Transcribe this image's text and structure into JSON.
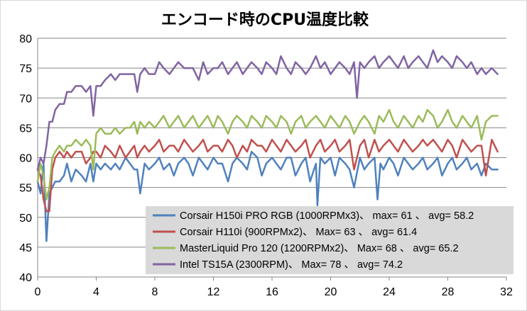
{
  "chart_data": {
    "type": "line",
    "title": "エンコード時のCPU温度比較",
    "xlabel": "",
    "ylabel": "",
    "xlim": [
      0,
      32
    ],
    "ylim": [
      40,
      80
    ],
    "x_ticks": [
      0,
      4,
      8,
      12,
      16,
      20,
      24,
      28,
      32
    ],
    "x_tick_labels": [
      "0",
      "4",
      "8",
      "12",
      "16",
      "20",
      "24",
      "28",
      "32"
    ],
    "y_ticks": [
      40,
      45,
      50,
      55,
      60,
      65,
      70,
      75,
      80
    ],
    "y_tick_labels": [
      "40",
      "45",
      "50",
      "55",
      "60",
      "65",
      "70",
      "75",
      "80"
    ],
    "grid": "horizontal",
    "legend_position": "bottom-right",
    "series": [
      {
        "name": "Corsair H150i PRO RGB (1000RPMx3)、 max= 61 、 avg= 58.2",
        "color": "#4f81bd",
        "x": [
          0,
          0.2,
          0.4,
          0.6,
          0.8,
          1.0,
          1.2,
          1.5,
          1.8,
          2.0,
          2.3,
          2.6,
          3.0,
          3.3,
          3.6,
          3.8,
          4.0,
          4.3,
          4.6,
          5.0,
          5.3,
          5.6,
          6.0,
          6.3,
          6.6,
          6.8,
          7.0,
          7.3,
          7.6,
          8.0,
          8.3,
          8.6,
          9.0,
          9.3,
          9.6,
          10.0,
          10.3,
          10.6,
          11.0,
          11.3,
          11.6,
          12.0,
          12.3,
          12.6,
          13.0,
          13.3,
          13.6,
          14.0,
          14.3,
          14.6,
          15.0,
          15.3,
          15.6,
          16.0,
          16.3,
          16.6,
          17.0,
          17.3,
          17.6,
          18.0,
          18.3,
          18.6,
          19.0,
          19.1,
          19.3,
          19.6,
          20.0,
          20.3,
          20.6,
          21.0,
          21.3,
          21.6,
          22.0,
          22.3,
          22.6,
          23.0,
          23.2,
          23.4,
          23.6,
          24.0,
          24.3,
          24.6,
          25.0,
          25.3,
          25.6,
          26.0,
          26.3,
          26.6,
          27.0,
          27.3,
          27.6,
          28.0,
          28.3,
          28.6,
          29.0,
          29.3,
          29.6,
          30.0,
          30.3,
          30.6,
          31.0,
          31.4
        ],
        "values": [
          56,
          54,
          59,
          46,
          54,
          55,
          56,
          56,
          57,
          59,
          56,
          58,
          57,
          56,
          59,
          56,
          59,
          58,
          59,
          58,
          59,
          58,
          60,
          59,
          58,
          58,
          54,
          59,
          58,
          59,
          60,
          58,
          59,
          57,
          59,
          60,
          59,
          57,
          60,
          59,
          58,
          60,
          59,
          59,
          56,
          59,
          60,
          59,
          58,
          61,
          60,
          57,
          59,
          60,
          59,
          58,
          60,
          60,
          57,
          59,
          60,
          56,
          59,
          52,
          60,
          59,
          60,
          57,
          60,
          59,
          58,
          55,
          60,
          58,
          59,
          60,
          53,
          59,
          58,
          60,
          59,
          57,
          60,
          59,
          58,
          59,
          60,
          58,
          59,
          60,
          57,
          59,
          60,
          58,
          59,
          60,
          58,
          59,
          57,
          59,
          58,
          58
        ]
      },
      {
        "name": "Corsair H110i (900RPMx2)、 Max= 63 、 avg= 61.4",
        "color": "#c0504d",
        "x": [
          0,
          0.2,
          0.4,
          0.6,
          0.8,
          1.0,
          1.2,
          1.5,
          1.8,
          2.0,
          2.3,
          2.6,
          3.0,
          3.3,
          3.6,
          3.8,
          4.0,
          4.3,
          4.6,
          5.0,
          5.3,
          5.6,
          6.0,
          6.3,
          6.6,
          6.8,
          7.0,
          7.3,
          7.6,
          8.0,
          8.3,
          8.6,
          9.0,
          9.3,
          9.6,
          10.0,
          10.3,
          10.6,
          11.0,
          11.3,
          11.6,
          12.0,
          12.3,
          12.6,
          13.0,
          13.3,
          13.6,
          14.0,
          14.3,
          14.6,
          15.0,
          15.3,
          15.6,
          16.0,
          16.3,
          16.6,
          17.0,
          17.3,
          17.6,
          18.0,
          18.3,
          18.6,
          19.0,
          19.3,
          19.6,
          20.0,
          20.3,
          20.6,
          21.0,
          21.3,
          21.6,
          22.0,
          22.3,
          22.6,
          23.0,
          23.3,
          23.6,
          24.0,
          24.3,
          24.6,
          25.0,
          25.3,
          25.6,
          26.0,
          26.3,
          26.6,
          27.0,
          27.3,
          27.6,
          28.0,
          28.3,
          28.6,
          29.0,
          29.3,
          29.6,
          30.0,
          30.3,
          30.6,
          31.0,
          31.4
        ],
        "values": [
          58,
          57,
          53,
          51,
          51,
          58,
          60,
          61,
          60,
          61,
          60,
          61,
          61,
          59,
          60,
          61,
          61,
          60,
          62,
          61,
          60,
          62,
          60,
          61,
          62,
          60,
          61,
          62,
          61,
          62,
          63,
          61,
          62,
          62,
          61,
          63,
          62,
          61,
          62,
          63,
          61,
          62,
          62,
          61,
          63,
          62,
          60,
          62,
          61,
          63,
          62,
          62,
          61,
          63,
          62,
          61,
          63,
          62,
          61,
          62,
          63,
          60,
          62,
          63,
          61,
          62,
          63,
          61,
          62,
          63,
          58,
          62,
          63,
          60,
          63,
          61,
          62,
          63,
          62,
          61,
          63,
          62,
          61,
          62,
          63,
          62,
          63,
          62,
          61,
          63,
          62,
          60,
          63,
          62,
          61,
          62,
          62,
          57,
          63,
          61
        ]
      },
      {
        "name": "MasterLiquid Pro 120 (1200RPMx2)、 Max= 68 、 avg= 65.2",
        "color": "#9bbb59",
        "x": [
          0,
          0.2,
          0.4,
          0.6,
          0.8,
          1.0,
          1.2,
          1.5,
          1.8,
          2.0,
          2.3,
          2.6,
          3.0,
          3.3,
          3.6,
          3.8,
          4.0,
          4.3,
          4.6,
          5.0,
          5.3,
          5.6,
          6.0,
          6.3,
          6.6,
          6.8,
          7.0,
          7.3,
          7.6,
          8.0,
          8.3,
          8.6,
          9.0,
          9.3,
          9.6,
          10.0,
          10.3,
          10.6,
          11.0,
          11.3,
          11.6,
          12.0,
          12.3,
          12.6,
          13.0,
          13.3,
          13.6,
          14.0,
          14.3,
          14.6,
          15.0,
          15.3,
          15.6,
          16.0,
          16.3,
          16.6,
          17.0,
          17.3,
          17.6,
          18.0,
          18.3,
          18.6,
          19.0,
          19.3,
          19.6,
          20.0,
          20.3,
          20.6,
          21.0,
          21.3,
          21.6,
          22.0,
          22.3,
          22.6,
          23.0,
          23.3,
          23.6,
          24.0,
          24.3,
          24.6,
          25.0,
          25.3,
          25.6,
          26.0,
          26.3,
          26.6,
          27.0,
          27.3,
          27.6,
          28.0,
          28.3,
          28.6,
          29.0,
          29.3,
          29.6,
          30.0,
          30.3,
          30.6,
          31.0,
          31.4
        ],
        "values": [
          56,
          59,
          57,
          53,
          55,
          60,
          61,
          62,
          61,
          62,
          62,
          63,
          62,
          63,
          62,
          58,
          64,
          65,
          64,
          64,
          65,
          64,
          65,
          65,
          66,
          64,
          66,
          65,
          66,
          65,
          66,
          67,
          65,
          66,
          67,
          65,
          66,
          67,
          65,
          66,
          67,
          65,
          67,
          66,
          64,
          66,
          67,
          66,
          65,
          67,
          66,
          65,
          67,
          66,
          65,
          67,
          66,
          64,
          66,
          67,
          65,
          66,
          67,
          66,
          65,
          67,
          66,
          65,
          67,
          66,
          64,
          66,
          67,
          66,
          64,
          67,
          66,
          68,
          66,
          65,
          67,
          66,
          65,
          67,
          66,
          68,
          67,
          65,
          66,
          68,
          66,
          65,
          67,
          66,
          65,
          67,
          63,
          66,
          67,
          67
        ]
      },
      {
        "name": "Intel TS15A (2300RPM)、 Max= 78 、 avg= 74.2",
        "color": "#8064a2",
        "x": [
          0,
          0.2,
          0.4,
          0.6,
          0.8,
          1.0,
          1.2,
          1.5,
          1.8,
          2.0,
          2.3,
          2.6,
          3.0,
          3.3,
          3.6,
          3.8,
          4.0,
          4.3,
          4.6,
          5.0,
          5.3,
          5.6,
          6.0,
          6.3,
          6.6,
          6.8,
          7.0,
          7.3,
          7.6,
          8.0,
          8.3,
          8.6,
          9.0,
          9.3,
          9.6,
          10.0,
          10.3,
          10.6,
          11.0,
          11.3,
          11.6,
          12.0,
          12.3,
          12.6,
          13.0,
          13.3,
          13.6,
          14.0,
          14.3,
          14.6,
          15.0,
          15.3,
          15.6,
          16.0,
          16.3,
          16.6,
          17.0,
          17.3,
          17.6,
          18.0,
          18.3,
          18.6,
          19.0,
          19.3,
          19.6,
          20.0,
          20.3,
          20.6,
          21.0,
          21.3,
          21.6,
          21.8,
          22.0,
          22.3,
          22.6,
          23.0,
          23.3,
          23.6,
          24.0,
          24.3,
          24.6,
          25.0,
          25.3,
          25.6,
          26.0,
          26.3,
          26.6,
          27.0,
          27.3,
          27.6,
          28.0,
          28.3,
          28.6,
          29.0,
          29.3,
          29.6,
          30.0,
          30.3,
          30.6,
          31.0,
          31.4
        ],
        "values": [
          58,
          60,
          59,
          62,
          66,
          66,
          68,
          69,
          69,
          71,
          71,
          72,
          72,
          71,
          72,
          67,
          72,
          72,
          73,
          74,
          73,
          74,
          74,
          74,
          74,
          71,
          74,
          75,
          74,
          74,
          76,
          75,
          74,
          75,
          76,
          75,
          75,
          75,
          73,
          76,
          74,
          75,
          75,
          76,
          74,
          75,
          76,
          74,
          75,
          76,
          75,
          74,
          76,
          75,
          74,
          77,
          75,
          74,
          76,
          75,
          74,
          75,
          77,
          75,
          76,
          74,
          75,
          76,
          75,
          74,
          76,
          70,
          76,
          75,
          76,
          77,
          75,
          76,
          77,
          76,
          75,
          77,
          75,
          76,
          77,
          76,
          75,
          78,
          76,
          77,
          76,
          75,
          77,
          76,
          75,
          76,
          74,
          75,
          74,
          75,
          74
        ]
      }
    ]
  }
}
